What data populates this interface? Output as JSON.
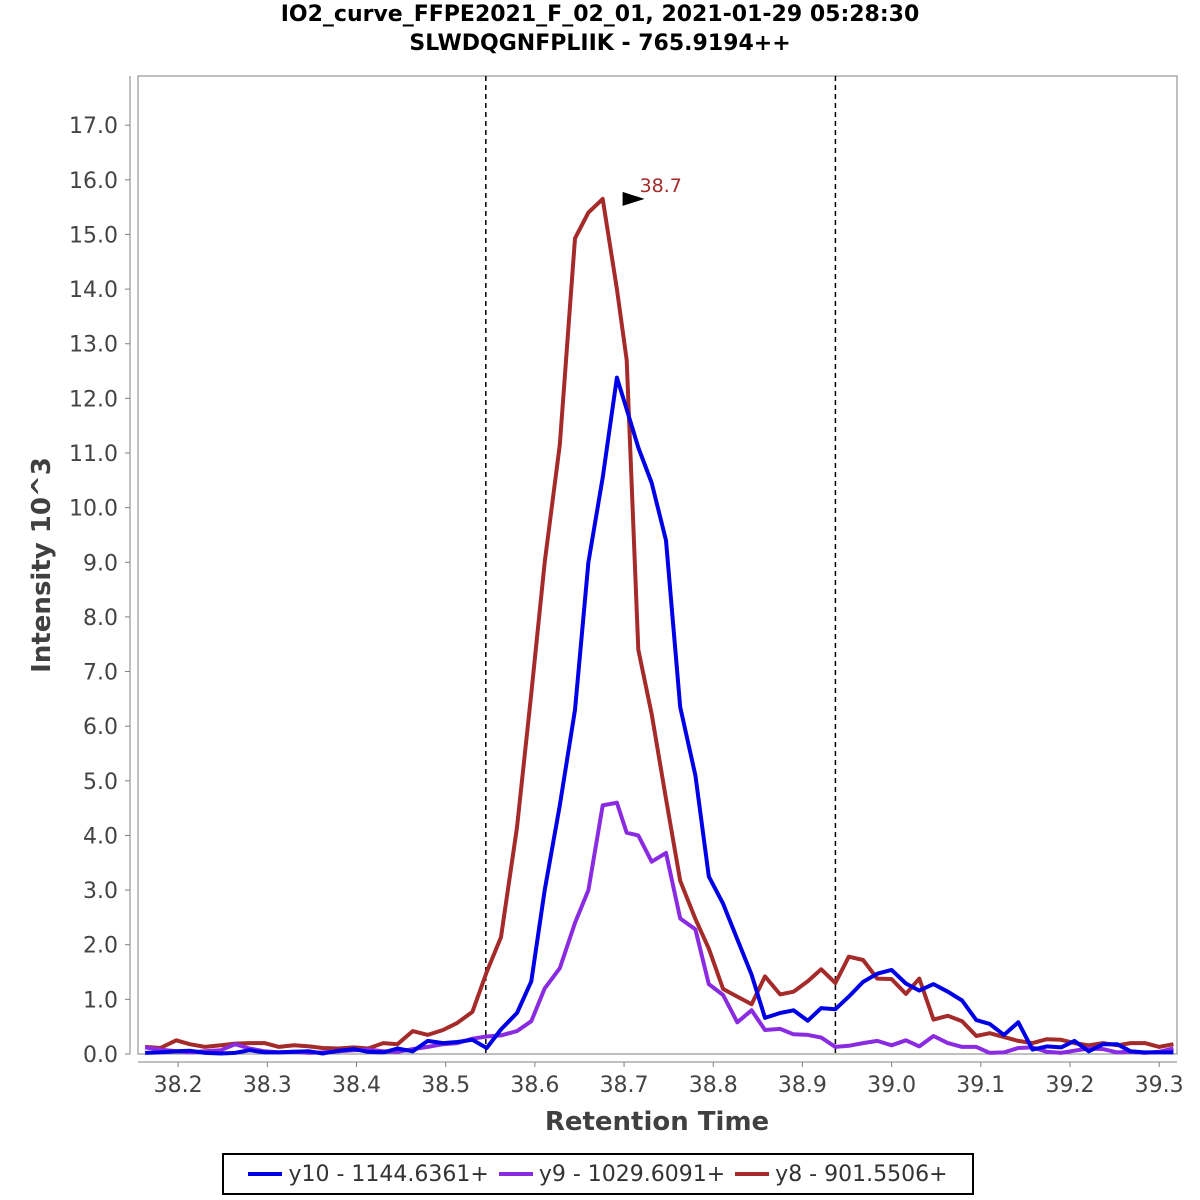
{
  "chart_data": {
    "type": "line",
    "title": "IO2_curve_FFPE2021_F_02_01, 2021-01-29 05:28:30",
    "subtitle": "SLWDQGNFPLIIK - 765.9194++",
    "xlabel": "Retention Time",
    "ylabel": "Intensity 10^3",
    "xlim": [
      38.155,
      39.32
    ],
    "ylim": [
      0,
      17.9
    ],
    "xticks": [
      "38.2",
      "38.3",
      "38.4",
      "38.5",
      "38.6",
      "38.7",
      "38.8",
      "38.9",
      "39.0",
      "39.1",
      "39.2",
      "39.3"
    ],
    "yticks": [
      "0.0",
      "1.0",
      "2.0",
      "3.0",
      "4.0",
      "5.0",
      "6.0",
      "7.0",
      "8.0",
      "9.0",
      "10.0",
      "11.0",
      "12.0",
      "13.0",
      "14.0",
      "15.0",
      "16.0",
      "17.0"
    ],
    "grid": false,
    "legend_position": "bottom",
    "boundaries": [
      38.545,
      38.937
    ],
    "peak_label": {
      "text": "38.7",
      "x": 38.732,
      "y": 15.65,
      "color": "#a52a2a"
    },
    "series": [
      {
        "name": "y10 - 1144.6361+",
        "color": "#0000e6",
        "x": [
          38.163,
          38.18,
          38.198,
          38.213,
          38.23,
          38.248,
          38.264,
          38.28,
          38.297,
          38.313,
          38.33,
          38.347,
          38.362,
          38.38,
          38.397,
          38.413,
          38.43,
          38.446,
          38.463,
          38.48,
          38.497,
          38.513,
          38.53,
          38.546,
          38.562,
          38.58,
          38.596,
          38.611,
          38.628,
          38.645,
          38.66,
          38.676,
          38.692,
          38.703,
          38.716,
          38.731,
          38.747,
          38.763,
          38.78,
          38.795,
          38.811,
          38.827,
          38.843,
          38.858,
          38.875,
          38.89,
          38.906,
          38.921,
          38.937,
          38.952,
          38.968,
          38.984,
          39.0,
          39.016,
          39.031,
          39.047,
          39.063,
          39.079,
          39.095,
          39.11,
          39.126,
          39.142,
          39.158,
          39.174,
          39.19,
          39.205,
          39.221,
          39.237,
          39.253,
          39.268,
          39.284,
          39.3,
          39.316
        ],
        "values": [
          0.02,
          0.03,
          0.05,
          0.06,
          0.02,
          0.01,
          0.02,
          0.07,
          0.03,
          0.03,
          0.04,
          0.05,
          0.01,
          0.06,
          0.09,
          0.04,
          0.03,
          0.1,
          0.05,
          0.24,
          0.2,
          0.22,
          0.26,
          0.11,
          0.45,
          0.75,
          1.33,
          3.0,
          4.55,
          6.3,
          9.0,
          10.55,
          12.38,
          11.8,
          11.1,
          10.45,
          9.4,
          6.35,
          5.1,
          3.25,
          2.75,
          2.1,
          1.45,
          0.66,
          0.75,
          0.8,
          0.61,
          0.84,
          0.82,
          1.05,
          1.32,
          1.47,
          1.54,
          1.29,
          1.16,
          1.28,
          1.14,
          0.98,
          0.62,
          0.55,
          0.35,
          0.58,
          0.08,
          0.14,
          0.12,
          0.24,
          0.05,
          0.18,
          0.18,
          0.05,
          0.03,
          0.03,
          0.03
        ]
      },
      {
        "name": "y9 - 1029.6091+",
        "color": "#8a2be2",
        "x": [
          38.163,
          38.18,
          38.198,
          38.213,
          38.23,
          38.248,
          38.264,
          38.28,
          38.297,
          38.313,
          38.33,
          38.347,
          38.362,
          38.38,
          38.397,
          38.413,
          38.43,
          38.446,
          38.463,
          38.48,
          38.497,
          38.513,
          38.53,
          38.546,
          38.562,
          38.58,
          38.596,
          38.611,
          38.628,
          38.645,
          38.66,
          38.676,
          38.692,
          38.703,
          38.716,
          38.731,
          38.747,
          38.763,
          38.78,
          38.795,
          38.811,
          38.827,
          38.843,
          38.858,
          38.875,
          38.89,
          38.906,
          38.921,
          38.937,
          38.952,
          38.968,
          38.984,
          39.0,
          39.016,
          39.031,
          39.047,
          39.063,
          39.079,
          39.095,
          39.11,
          39.126,
          39.142,
          39.158,
          39.174,
          39.19,
          39.205,
          39.221,
          39.237,
          39.253,
          39.268,
          39.284,
          39.3,
          39.316
        ],
        "values": [
          0.12,
          0.08,
          0.05,
          0.03,
          0.05,
          0.07,
          0.18,
          0.1,
          0.05,
          0.03,
          0.04,
          0.02,
          0.03,
          0.05,
          0.07,
          0.08,
          0.05,
          0.04,
          0.09,
          0.13,
          0.18,
          0.2,
          0.28,
          0.32,
          0.34,
          0.42,
          0.6,
          1.2,
          1.57,
          2.4,
          3.0,
          4.55,
          4.6,
          4.05,
          4.0,
          3.52,
          3.68,
          2.48,
          2.28,
          1.28,
          1.08,
          0.58,
          0.8,
          0.44,
          0.46,
          0.36,
          0.35,
          0.3,
          0.13,
          0.15,
          0.2,
          0.24,
          0.16,
          0.25,
          0.14,
          0.33,
          0.2,
          0.13,
          0.13,
          0.02,
          0.03,
          0.11,
          0.12,
          0.04,
          0.02,
          0.06,
          0.1,
          0.09,
          0.03,
          0.04,
          0.02,
          0.04,
          0.1
        ]
      },
      {
        "name": "y8 - 901.5506+",
        "color": "#a52a2a",
        "x": [
          38.163,
          38.18,
          38.198,
          38.213,
          38.23,
          38.248,
          38.264,
          38.28,
          38.297,
          38.313,
          38.33,
          38.347,
          38.362,
          38.38,
          38.397,
          38.413,
          38.43,
          38.446,
          38.463,
          38.48,
          38.497,
          38.513,
          38.53,
          38.546,
          38.562,
          38.58,
          38.596,
          38.611,
          38.628,
          38.645,
          38.66,
          38.676,
          38.692,
          38.703,
          38.716,
          38.731,
          38.747,
          38.763,
          38.78,
          38.795,
          38.811,
          38.827,
          38.843,
          38.858,
          38.875,
          38.89,
          38.906,
          38.921,
          38.937,
          38.952,
          38.968,
          38.984,
          39.0,
          39.016,
          39.031,
          39.047,
          39.063,
          39.079,
          39.095,
          39.11,
          39.126,
          39.142,
          39.158,
          39.174,
          39.19,
          39.205,
          39.221,
          39.237,
          39.253,
          39.268,
          39.284,
          39.3,
          39.316
        ],
        "values": [
          0.13,
          0.11,
          0.25,
          0.18,
          0.13,
          0.16,
          0.19,
          0.2,
          0.2,
          0.13,
          0.16,
          0.14,
          0.11,
          0.1,
          0.12,
          0.1,
          0.2,
          0.18,
          0.42,
          0.35,
          0.44,
          0.57,
          0.77,
          1.5,
          2.14,
          4.15,
          6.6,
          9.0,
          11.15,
          14.93,
          15.4,
          15.65,
          14.0,
          12.7,
          7.4,
          6.22,
          4.67,
          3.17,
          2.47,
          1.93,
          1.19,
          1.05,
          0.91,
          1.42,
          1.09,
          1.14,
          1.33,
          1.55,
          1.3,
          1.78,
          1.72,
          1.38,
          1.37,
          1.1,
          1.38,
          0.63,
          0.7,
          0.6,
          0.33,
          0.38,
          0.31,
          0.24,
          0.2,
          0.27,
          0.26,
          0.2,
          0.16,
          0.2,
          0.16,
          0.2,
          0.2,
          0.13,
          0.18
        ]
      }
    ]
  }
}
